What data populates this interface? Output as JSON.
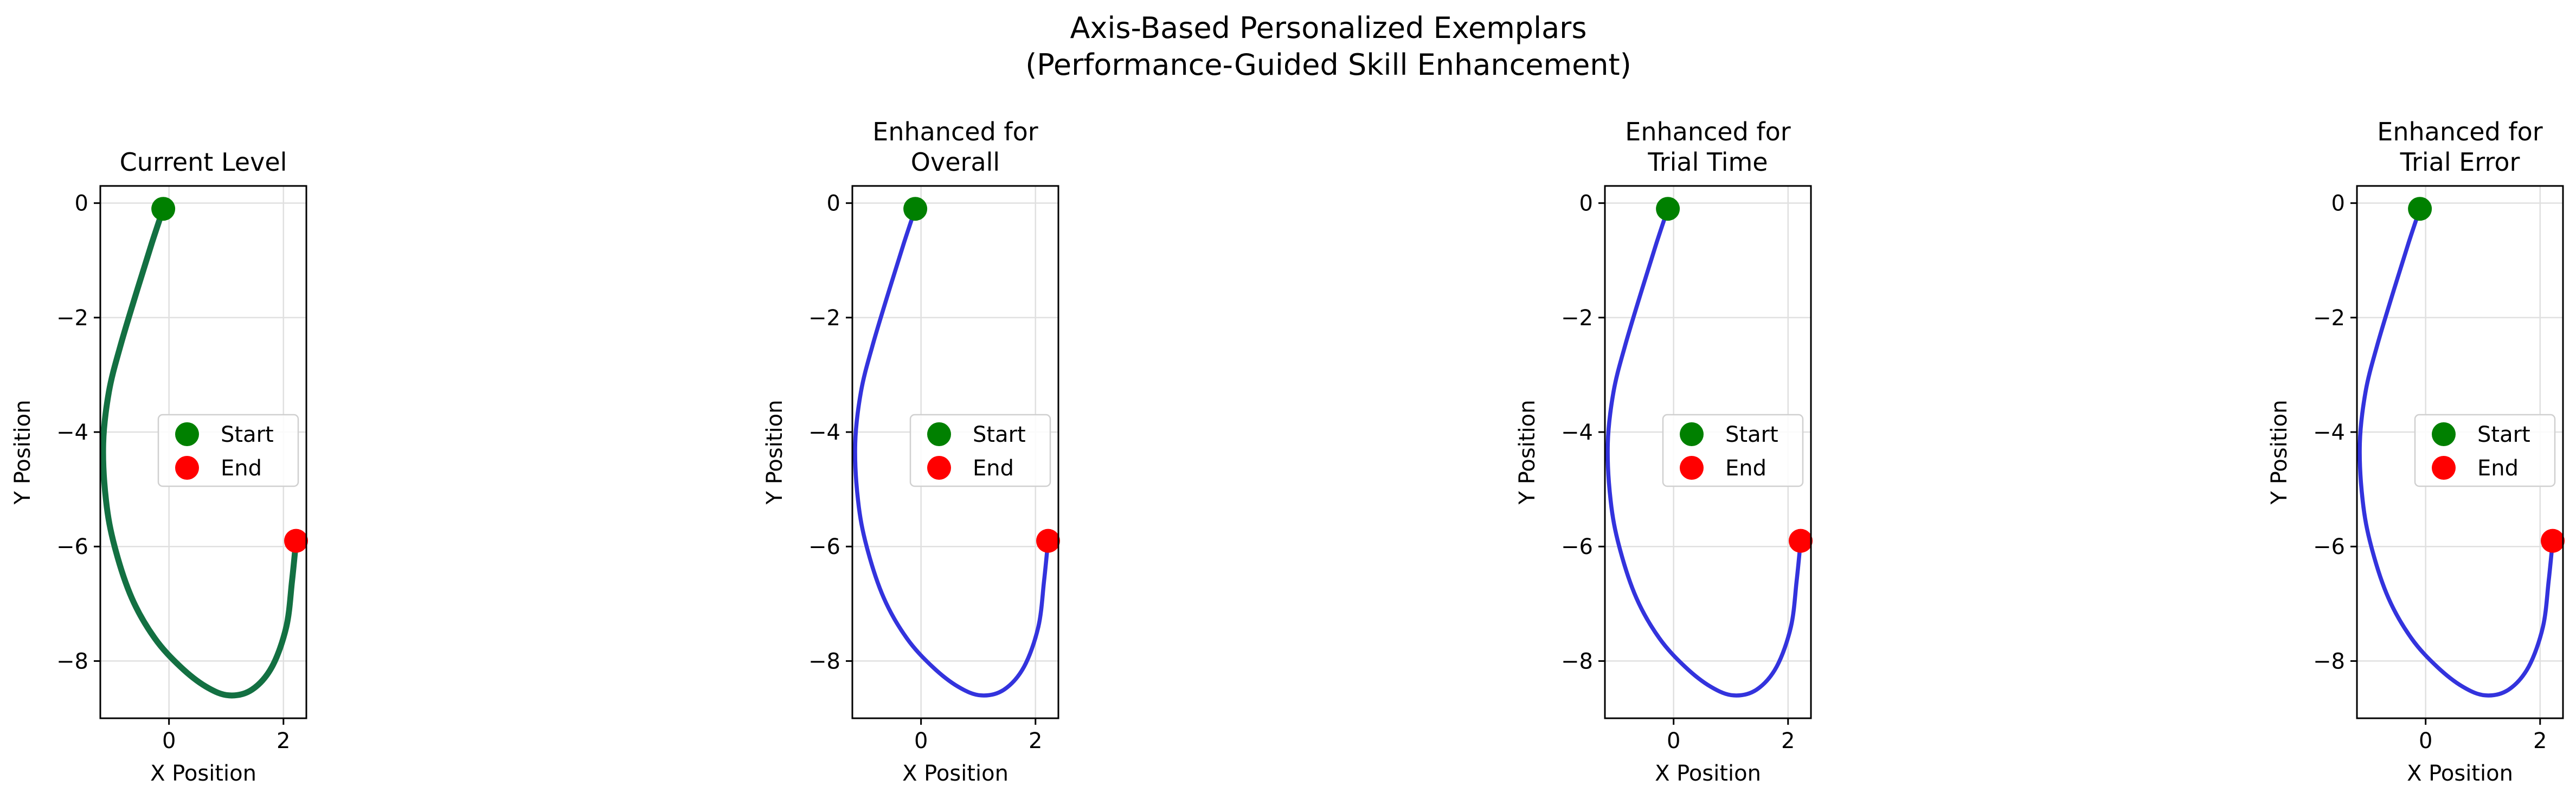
{
  "figure": {
    "title_line1": "Axis-Based Personalized Exemplars",
    "title_line2": "(Performance-Guided Skill Enhancement)"
  },
  "legend": {
    "start_label": "Start",
    "end_label": "End",
    "start_color": "#008000",
    "end_color": "#ff0000"
  },
  "chart_data": [
    {
      "type": "line",
      "title": [
        "Current Level"
      ],
      "xlabel": "X Position",
      "ylabel": "Y Position",
      "xlim": [
        -1.2,
        2.4
      ],
      "ylim": [
        -9.0,
        0.3
      ],
      "xticks": [
        0,
        2
      ],
      "yticks": [
        0,
        -2,
        -4,
        -6,
        -8
      ],
      "grid": true,
      "legend_position": "center-right",
      "line_color": "#137042",
      "series": [
        {
          "x": [
            -0.1,
            -0.3,
            -0.55,
            -0.85,
            -1.05,
            -1.15,
            -1.1,
            -0.95,
            -0.65,
            -0.25,
            0.2,
            0.65,
            1.05,
            1.45,
            1.8,
            2.05,
            2.15,
            2.22
          ],
          "y": [
            -0.1,
            -0.7,
            -1.5,
            -2.5,
            -3.3,
            -4.2,
            -5.2,
            -6.0,
            -6.9,
            -7.6,
            -8.1,
            -8.45,
            -8.6,
            -8.5,
            -8.1,
            -7.4,
            -6.6,
            -5.9
          ]
        }
      ],
      "start": {
        "x": -0.1,
        "y": -0.1
      },
      "end": {
        "x": 2.22,
        "y": -5.9
      }
    },
    {
      "type": "line",
      "title": [
        "Enhanced for",
        "Overall"
      ],
      "xlabel": "X Position",
      "ylabel": "Y Position",
      "xlim": [
        -1.2,
        2.4
      ],
      "ylim": [
        -9.0,
        0.3
      ],
      "xticks": [
        0,
        2
      ],
      "yticks": [
        0,
        -2,
        -4,
        -6,
        -8
      ],
      "grid": true,
      "legend_position": "center-right",
      "line_color": "#3333dd",
      "series": [
        {
          "x": [
            -0.1,
            -0.3,
            -0.55,
            -0.85,
            -1.05,
            -1.15,
            -1.1,
            -0.95,
            -0.65,
            -0.25,
            0.2,
            0.65,
            1.05,
            1.45,
            1.8,
            2.05,
            2.15,
            2.22
          ],
          "y": [
            -0.1,
            -0.7,
            -1.5,
            -2.5,
            -3.3,
            -4.2,
            -5.2,
            -6.0,
            -6.9,
            -7.6,
            -8.1,
            -8.45,
            -8.6,
            -8.5,
            -8.1,
            -7.4,
            -6.6,
            -5.9
          ]
        }
      ],
      "start": {
        "x": -0.1,
        "y": -0.1
      },
      "end": {
        "x": 2.22,
        "y": -5.9
      }
    },
    {
      "type": "line",
      "title": [
        "Enhanced for",
        "Trial Time"
      ],
      "xlabel": "X Position",
      "ylabel": "Y Position",
      "xlim": [
        -1.2,
        2.4
      ],
      "ylim": [
        -9.0,
        0.3
      ],
      "xticks": [
        0,
        2
      ],
      "yticks": [
        0,
        -2,
        -4,
        -6,
        -8
      ],
      "grid": true,
      "legend_position": "center-right",
      "line_color": "#3333dd",
      "series": [
        {
          "x": [
            -0.1,
            -0.3,
            -0.55,
            -0.85,
            -1.05,
            -1.15,
            -1.1,
            -0.95,
            -0.65,
            -0.25,
            0.2,
            0.65,
            1.05,
            1.45,
            1.8,
            2.05,
            2.15,
            2.22
          ],
          "y": [
            -0.1,
            -0.7,
            -1.5,
            -2.5,
            -3.3,
            -4.2,
            -5.2,
            -6.0,
            -6.9,
            -7.6,
            -8.1,
            -8.45,
            -8.6,
            -8.5,
            -8.1,
            -7.4,
            -6.6,
            -5.9
          ]
        }
      ],
      "start": {
        "x": -0.1,
        "y": -0.1
      },
      "end": {
        "x": 2.22,
        "y": -5.9
      }
    },
    {
      "type": "line",
      "title": [
        "Enhanced for",
        "Trial Error"
      ],
      "xlabel": "X Position",
      "ylabel": "Y Position",
      "xlim": [
        -1.2,
        2.4
      ],
      "ylim": [
        -9.0,
        0.3
      ],
      "xticks": [
        0,
        2
      ],
      "yticks": [
        0,
        -2,
        -4,
        -6,
        -8
      ],
      "grid": true,
      "legend_position": "center-right",
      "line_color": "#3333dd",
      "series": [
        {
          "x": [
            -0.1,
            -0.3,
            -0.55,
            -0.85,
            -1.05,
            -1.15,
            -1.1,
            -0.95,
            -0.65,
            -0.25,
            0.2,
            0.65,
            1.05,
            1.45,
            1.8,
            2.05,
            2.15,
            2.22
          ],
          "y": [
            -0.1,
            -0.7,
            -1.5,
            -2.5,
            -3.3,
            -4.2,
            -5.2,
            -6.0,
            -6.9,
            -7.6,
            -8.1,
            -8.45,
            -8.6,
            -8.5,
            -8.1,
            -7.4,
            -6.6,
            -5.9
          ]
        }
      ],
      "start": {
        "x": -0.1,
        "y": -0.1
      },
      "end": {
        "x": 2.22,
        "y": -5.9
      }
    }
  ]
}
